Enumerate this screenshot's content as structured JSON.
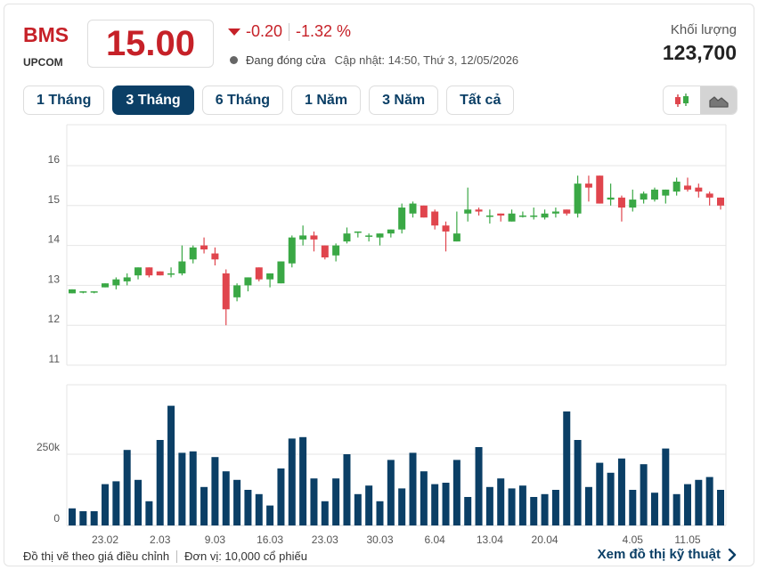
{
  "header": {
    "ticker": "BMS",
    "exchange": "UPCOM",
    "price": "15.00",
    "change": "-0.20",
    "change_pct": "-1.32 %",
    "status": "Đang đóng cửa",
    "updated": "Cập nhật: 14:50, Thứ 3, 12/05/2026",
    "volume_label": "Khối lượng",
    "volume_value": "123,700"
  },
  "tabs": [
    {
      "label": "1 Tháng",
      "active": false
    },
    {
      "label": "3 Tháng",
      "active": true
    },
    {
      "label": "6 Tháng",
      "active": false
    },
    {
      "label": "1 Năm",
      "active": false
    },
    {
      "label": "3 Năm",
      "active": false
    },
    {
      "label": "Tất cả",
      "active": false
    }
  ],
  "chart_toggle": {
    "candle_icon": "candlestick-icon",
    "area_icon": "mountain-area-icon",
    "selected": "area"
  },
  "colors": {
    "up": "#3aa845",
    "down": "#e0454d",
    "volume": "#0b3f66",
    "accent": "#0b3f66",
    "price_red": "#c62128"
  },
  "chart_data": {
    "type": "candlestick",
    "price_axis": {
      "ticks": [
        "16",
        "15",
        "14",
        "13",
        "12",
        "11"
      ],
      "min": 11,
      "max": 16
    },
    "volume_axis": {
      "ticks": [
        "250k",
        "0"
      ],
      "max": 450000
    },
    "x_ticks": [
      {
        "label": "23.02",
        "index": 3
      },
      {
        "label": "2.03",
        "index": 8
      },
      {
        "label": "9.03",
        "index": 13
      },
      {
        "label": "16.03",
        "index": 18
      },
      {
        "label": "23.03",
        "index": 23
      },
      {
        "label": "30.03",
        "index": 28
      },
      {
        "label": "6.04",
        "index": 33
      },
      {
        "label": "13.04",
        "index": 38
      },
      {
        "label": "20.04",
        "index": 43
      },
      {
        "label": "4.05",
        "index": 51
      },
      {
        "label": "11.05",
        "index": 56
      }
    ],
    "candles": [
      {
        "o": 12.8,
        "h": 12.9,
        "l": 12.8,
        "c": 12.9,
        "v": 60000
      },
      {
        "o": 12.85,
        "h": 12.85,
        "l": 12.8,
        "c": 12.85,
        "v": 50000
      },
      {
        "o": 12.85,
        "h": 12.85,
        "l": 12.8,
        "c": 12.85,
        "v": 50000
      },
      {
        "o": 12.95,
        "h": 13.05,
        "l": 12.95,
        "c": 13.05,
        "v": 145000
      },
      {
        "o": 13.0,
        "h": 13.2,
        "l": 12.9,
        "c": 13.15,
        "v": 155000
      },
      {
        "o": 13.1,
        "h": 13.3,
        "l": 13.0,
        "c": 13.2,
        "v": 265000
      },
      {
        "o": 13.25,
        "h": 13.45,
        "l": 13.15,
        "c": 13.45,
        "v": 160000
      },
      {
        "o": 13.45,
        "h": 13.45,
        "l": 13.2,
        "c": 13.25,
        "v": 85000
      },
      {
        "o": 13.35,
        "h": 13.35,
        "l": 13.25,
        "c": 13.25,
        "v": 300000
      },
      {
        "o": 13.3,
        "h": 13.45,
        "l": 13.2,
        "c": 13.3,
        "v": 420000
      },
      {
        "o": 13.3,
        "h": 14.0,
        "l": 13.25,
        "c": 13.6,
        "v": 255000
      },
      {
        "o": 13.65,
        "h": 14.0,
        "l": 13.55,
        "c": 13.95,
        "v": 260000
      },
      {
        "o": 14.0,
        "h": 14.2,
        "l": 13.8,
        "c": 13.9,
        "v": 135000
      },
      {
        "o": 13.8,
        "h": 13.95,
        "l": 13.5,
        "c": 13.65,
        "v": 240000
      },
      {
        "o": 13.3,
        "h": 13.4,
        "l": 12.0,
        "c": 12.4,
        "v": 190000
      },
      {
        "o": 12.7,
        "h": 13.05,
        "l": 12.6,
        "c": 13.0,
        "v": 160000
      },
      {
        "o": 13.0,
        "h": 13.2,
        "l": 12.85,
        "c": 13.2,
        "v": 125000
      },
      {
        "o": 13.45,
        "h": 13.45,
        "l": 13.1,
        "c": 13.15,
        "v": 110000
      },
      {
        "o": 13.15,
        "h": 13.3,
        "l": 12.95,
        "c": 13.3,
        "v": 70000
      },
      {
        "o": 13.05,
        "h": 13.6,
        "l": 13.05,
        "c": 13.6,
        "v": 200000
      },
      {
        "o": 13.55,
        "h": 14.25,
        "l": 13.45,
        "c": 14.2,
        "v": 305000
      },
      {
        "o": 14.15,
        "h": 14.5,
        "l": 14.0,
        "c": 14.25,
        "v": 310000
      },
      {
        "o": 14.25,
        "h": 14.35,
        "l": 13.85,
        "c": 14.15,
        "v": 165000
      },
      {
        "o": 14.0,
        "h": 14.0,
        "l": 13.65,
        "c": 13.7,
        "v": 85000
      },
      {
        "o": 13.75,
        "h": 14.05,
        "l": 13.6,
        "c": 14.0,
        "v": 165000
      },
      {
        "o": 14.1,
        "h": 14.45,
        "l": 14.05,
        "c": 14.3,
        "v": 250000
      },
      {
        "o": 14.35,
        "h": 14.35,
        "l": 14.2,
        "c": 14.35,
        "v": 110000
      },
      {
        "o": 14.25,
        "h": 14.3,
        "l": 14.1,
        "c": 14.25,
        "v": 140000
      },
      {
        "o": 14.2,
        "h": 14.3,
        "l": 14.0,
        "c": 14.3,
        "v": 85000
      },
      {
        "o": 14.3,
        "h": 14.4,
        "l": 14.2,
        "c": 14.4,
        "v": 230000
      },
      {
        "o": 14.4,
        "h": 15.05,
        "l": 14.3,
        "c": 14.95,
        "v": 130000
      },
      {
        "o": 14.8,
        "h": 15.1,
        "l": 14.7,
        "c": 15.05,
        "v": 255000
      },
      {
        "o": 15.0,
        "h": 15.0,
        "l": 14.7,
        "c": 14.7,
        "v": 190000
      },
      {
        "o": 14.85,
        "h": 14.9,
        "l": 14.4,
        "c": 14.5,
        "v": 145000
      },
      {
        "o": 14.5,
        "h": 14.6,
        "l": 13.85,
        "c": 14.35,
        "v": 150000
      },
      {
        "o": 14.1,
        "h": 14.85,
        "l": 14.1,
        "c": 14.3,
        "v": 230000
      },
      {
        "o": 14.8,
        "h": 15.45,
        "l": 14.6,
        "c": 14.9,
        "v": 100000
      },
      {
        "o": 14.9,
        "h": 14.95,
        "l": 14.75,
        "c": 14.85,
        "v": 275000
      },
      {
        "o": 14.75,
        "h": 14.9,
        "l": 14.55,
        "c": 14.75,
        "v": 135000
      },
      {
        "o": 14.8,
        "h": 14.8,
        "l": 14.6,
        "c": 14.75,
        "v": 165000
      },
      {
        "o": 14.6,
        "h": 14.9,
        "l": 14.6,
        "c": 14.8,
        "v": 130000
      },
      {
        "o": 14.75,
        "h": 14.85,
        "l": 14.7,
        "c": 14.75,
        "v": 140000
      },
      {
        "o": 14.75,
        "h": 14.95,
        "l": 14.65,
        "c": 14.75,
        "v": 100000
      },
      {
        "o": 14.7,
        "h": 14.9,
        "l": 14.65,
        "c": 14.8,
        "v": 110000
      },
      {
        "o": 14.8,
        "h": 14.95,
        "l": 14.7,
        "c": 14.85,
        "v": 125000
      },
      {
        "o": 14.9,
        "h": 14.9,
        "l": 14.75,
        "c": 14.8,
        "v": 400000
      },
      {
        "o": 14.8,
        "h": 15.75,
        "l": 14.7,
        "c": 15.55,
        "v": 300000
      },
      {
        "o": 15.55,
        "h": 15.75,
        "l": 15.1,
        "c": 15.45,
        "v": 135000
      },
      {
        "o": 15.75,
        "h": 15.75,
        "l": 15.05,
        "c": 15.05,
        "v": 220000
      },
      {
        "o": 15.15,
        "h": 15.55,
        "l": 15.0,
        "c": 15.2,
        "v": 185000
      },
      {
        "o": 15.2,
        "h": 15.25,
        "l": 14.6,
        "c": 14.95,
        "v": 235000
      },
      {
        "o": 14.95,
        "h": 15.4,
        "l": 14.85,
        "c": 15.15,
        "v": 125000
      },
      {
        "o": 15.15,
        "h": 15.35,
        "l": 15.05,
        "c": 15.3,
        "v": 215000
      },
      {
        "o": 15.15,
        "h": 15.45,
        "l": 15.1,
        "c": 15.4,
        "v": 115000
      },
      {
        "o": 15.25,
        "h": 15.4,
        "l": 15.05,
        "c": 15.4,
        "v": 270000
      },
      {
        "o": 15.35,
        "h": 15.7,
        "l": 15.25,
        "c": 15.6,
        "v": 110000
      },
      {
        "o": 15.5,
        "h": 15.7,
        "l": 15.35,
        "c": 15.4,
        "v": 145000
      },
      {
        "o": 15.45,
        "h": 15.55,
        "l": 15.2,
        "c": 15.35,
        "v": 160000
      },
      {
        "o": 15.3,
        "h": 15.35,
        "l": 15.0,
        "c": 15.2,
        "v": 170000
      },
      {
        "o": 15.2,
        "h": 15.2,
        "l": 14.9,
        "c": 15.0,
        "v": 125000
      }
    ]
  },
  "footer": {
    "note": "Đồ thị vẽ theo giá điều chỉnh",
    "unit": "Đơn vị: 10,000 cổ phiếu",
    "link": "Xem đồ thị kỹ thuật"
  }
}
